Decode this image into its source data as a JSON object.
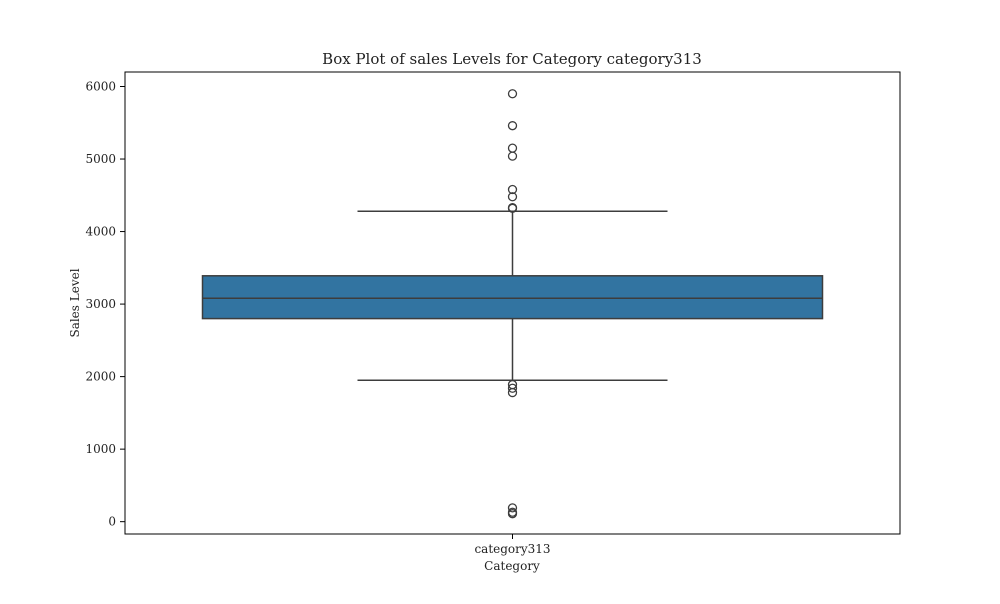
{
  "chart_data": {
    "type": "box",
    "title": "Box Plot of sales Levels for Category category313",
    "xlabel": "Category",
    "ylabel": "Sales Level",
    "categories": [
      "category313"
    ],
    "ylim": [
      -170,
      6200
    ],
    "yticks": [
      0,
      1000,
      2000,
      3000,
      4000,
      5000,
      6000
    ],
    "grid": false,
    "boxes": [
      {
        "category": "category313",
        "whisker_low": 1950,
        "q1": 2800,
        "median": 3080,
        "q3": 3390,
        "whisker_high": 4280,
        "outliers": [
          5900,
          5460,
          5150,
          5040,
          4580,
          4480,
          4330,
          4320,
          1890,
          1840,
          1780,
          190,
          130,
          110
        ]
      }
    ],
    "colors": {
      "box_fill": "#3274a1",
      "lines": "#3d3d3d",
      "axes": "#000000"
    }
  }
}
